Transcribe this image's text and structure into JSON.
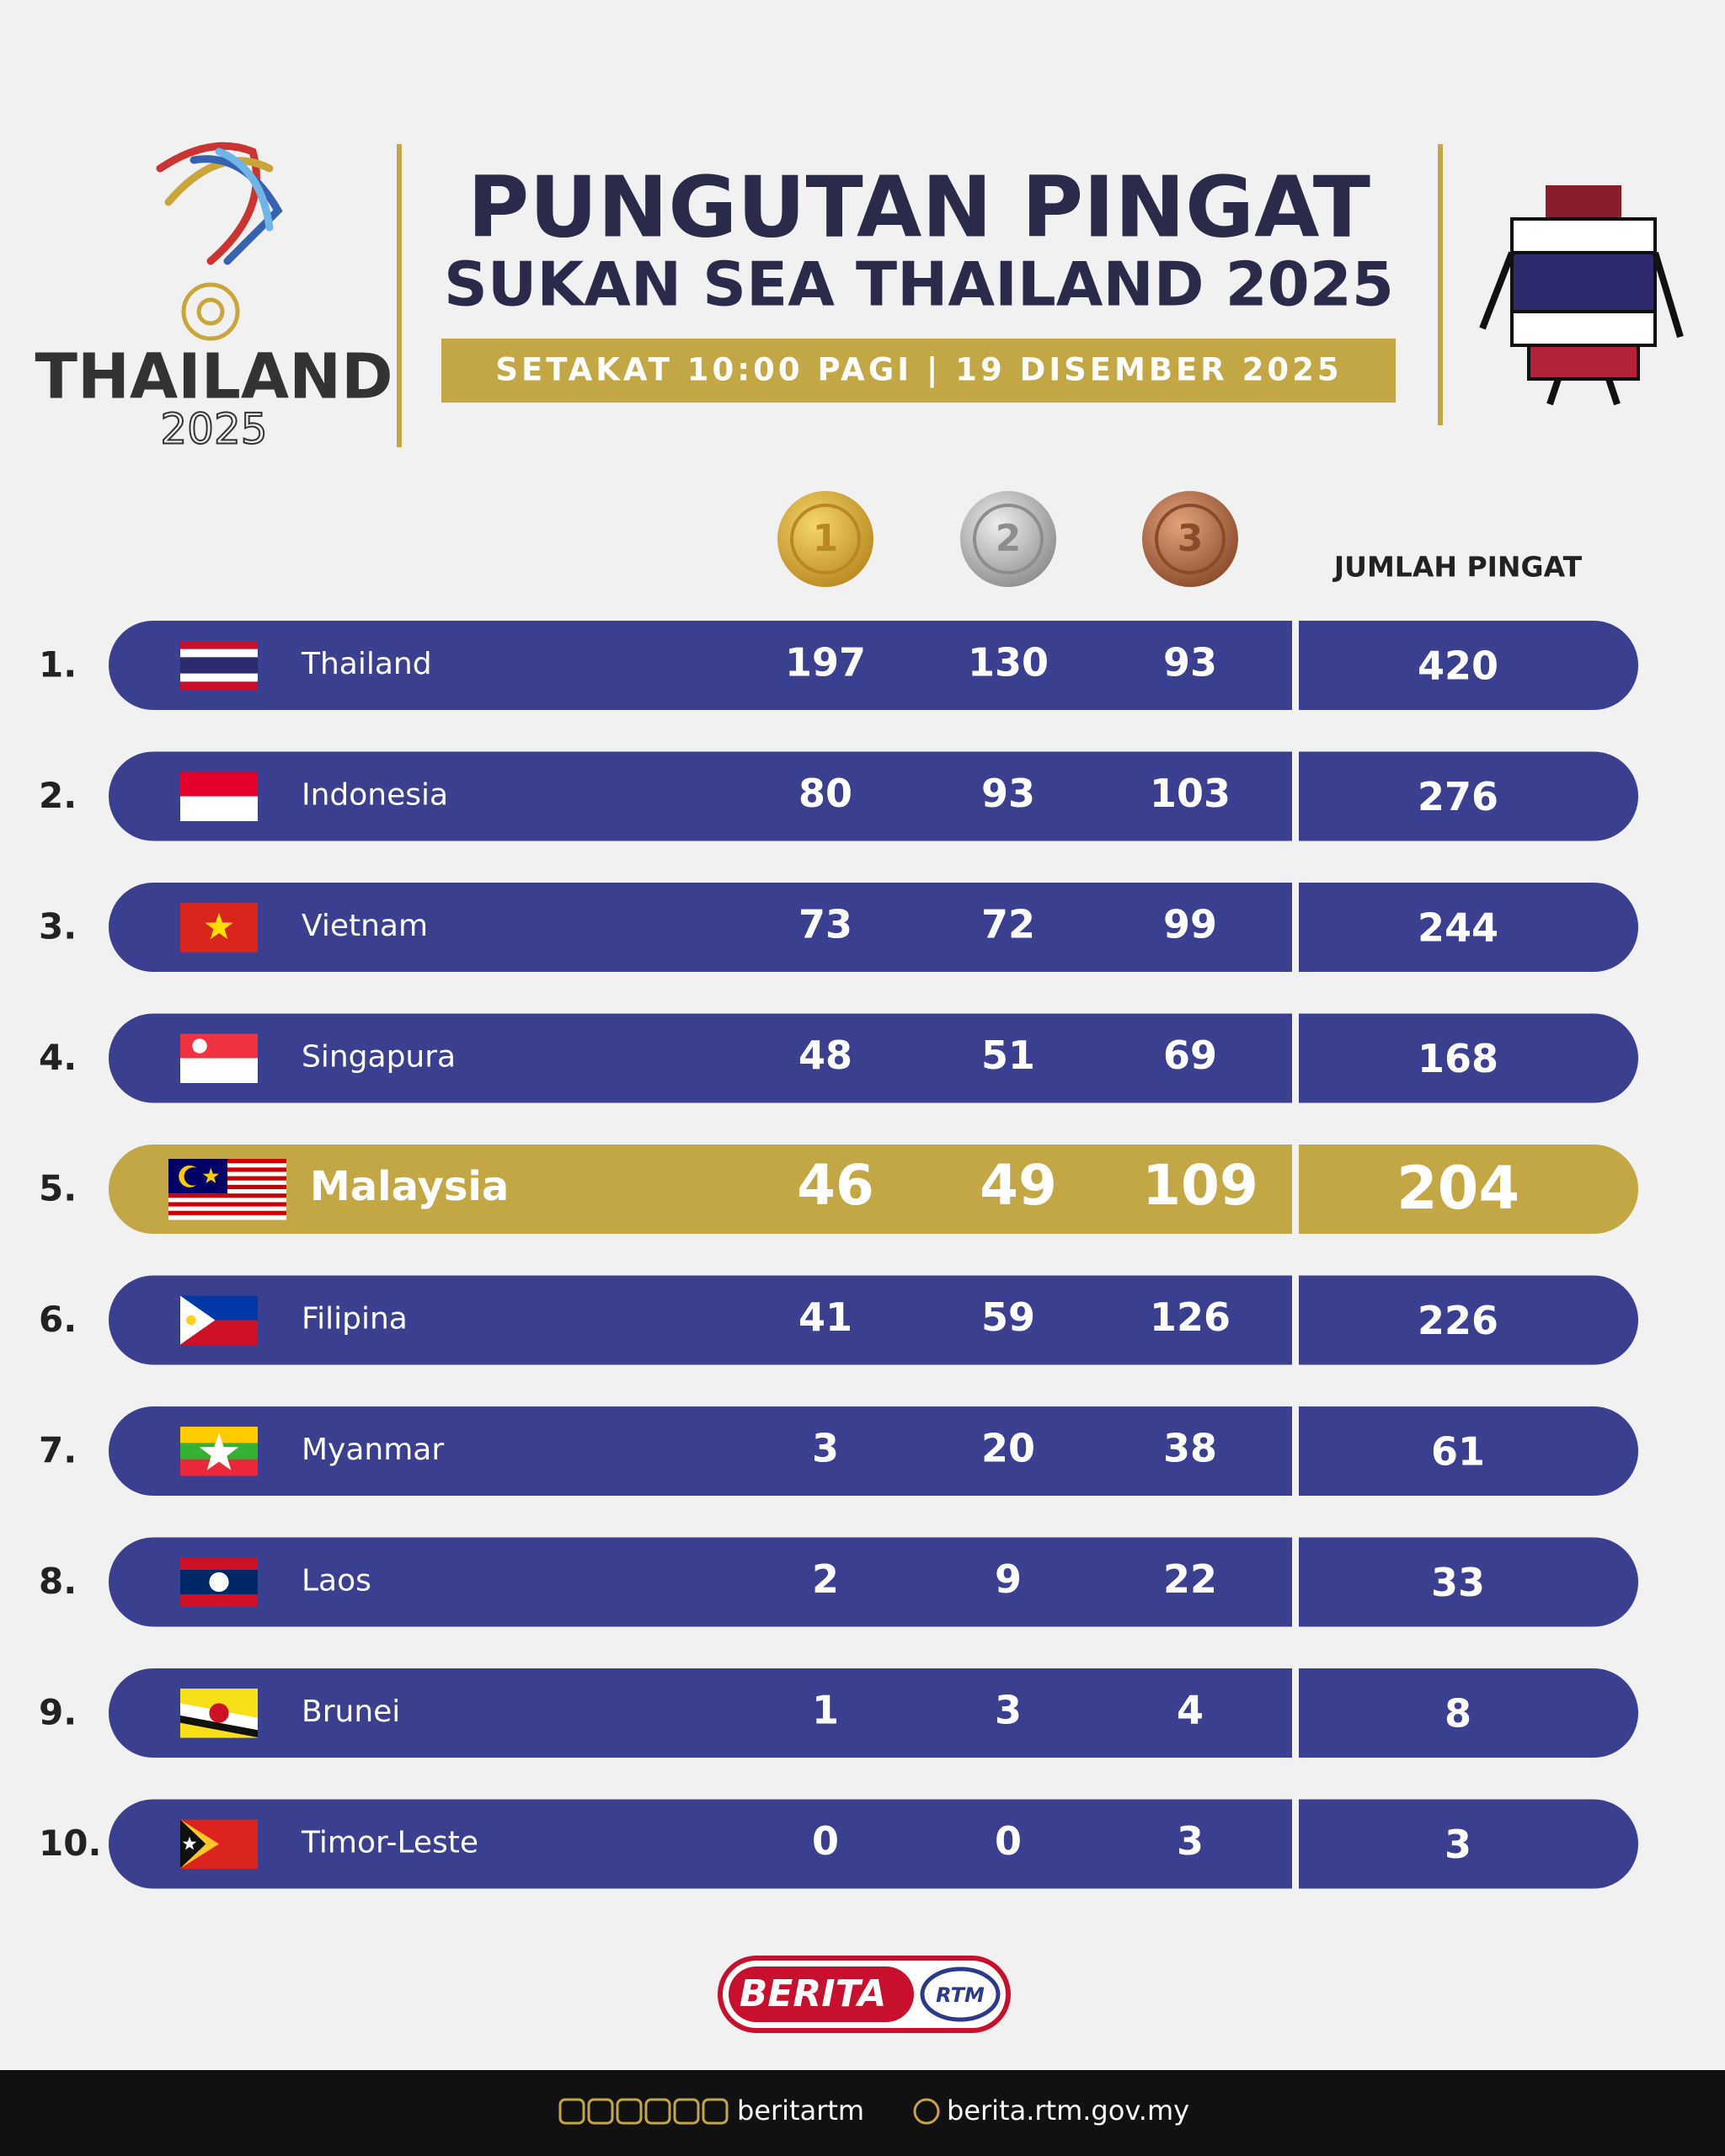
{
  "header": {
    "logo": {
      "name": "THAILAND",
      "year": "2025"
    },
    "title": "PUNGUTAN PINGAT",
    "subtitle": "SUKAN SEA THAILAND 2025",
    "banner": "SETAKAT 10:00 PAGI | 19 DISEMBER 2025"
  },
  "table": {
    "medals": [
      "1",
      "2",
      "3"
    ],
    "total_header": "JUMLAH PINGAT",
    "rows": [
      {
        "rank": "1.",
        "country": "Thailand",
        "gold": "197",
        "silver": "130",
        "bronze": "93",
        "total": "420"
      },
      {
        "rank": "2.",
        "country": "Indonesia",
        "gold": "80",
        "silver": "93",
        "bronze": "103",
        "total": "276"
      },
      {
        "rank": "3.",
        "country": "Vietnam",
        "gold": "73",
        "silver": "72",
        "bronze": "99",
        "total": "244"
      },
      {
        "rank": "4.",
        "country": "Singapura",
        "gold": "48",
        "silver": "51",
        "bronze": "69",
        "total": "168"
      },
      {
        "rank": "5.",
        "country": "Malaysia",
        "gold": "46",
        "silver": "49",
        "bronze": "109",
        "total": "204"
      },
      {
        "rank": "6.",
        "country": "Filipina",
        "gold": "41",
        "silver": "59",
        "bronze": "126",
        "total": "226"
      },
      {
        "rank": "7.",
        "country": "Myanmar",
        "gold": "3",
        "silver": "20",
        "bronze": "38",
        "total": "61"
      },
      {
        "rank": "8.",
        "country": "Laos",
        "gold": "2",
        "silver": "9",
        "bronze": "22",
        "total": "33"
      },
      {
        "rank": "9.",
        "country": "Brunei",
        "gold": "1",
        "silver": "3",
        "bronze": "4",
        "total": "8"
      },
      {
        "rank": "10.",
        "country": "Timor-Leste",
        "gold": "0",
        "silver": "0",
        "bronze": "3",
        "total": "3"
      }
    ]
  },
  "footer": {
    "brand": "BERITA",
    "brand_badge": "RTM",
    "social": "beritartm",
    "website": "berita.rtm.gov.my"
  }
}
